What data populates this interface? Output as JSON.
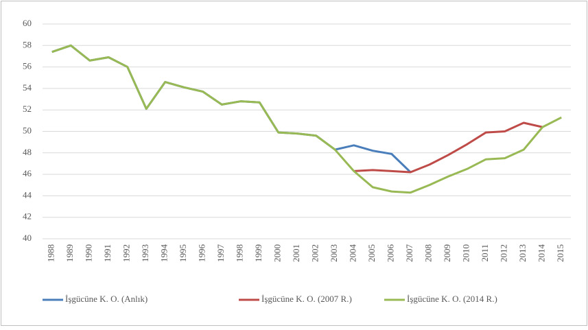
{
  "chart_data": {
    "type": "line",
    "categories": [
      "1988",
      "1989",
      "1990",
      "1991",
      "1992",
      "1993",
      "1994",
      "1995",
      "1996",
      "1997",
      "1998",
      "1999",
      "2000",
      "2001",
      "2002",
      "2003",
      "2004",
      "2005",
      "2006",
      "2007",
      "2008",
      "2009",
      "2010",
      "2011",
      "2012",
      "2013",
      "2014",
      "2015"
    ],
    "series": [
      {
        "name": "İşgücüne K. O. (Anlık)",
        "color": "#4a7ebb",
        "values": [
          57.4,
          58.0,
          56.6,
          56.9,
          56.0,
          52.1,
          54.6,
          54.1,
          53.7,
          52.5,
          52.8,
          52.7,
          49.9,
          49.8,
          49.6,
          48.3,
          48.7,
          48.2,
          47.9,
          46.2,
          null,
          null,
          null,
          null,
          null,
          null,
          null,
          null
        ]
      },
      {
        "name": "İşgücüne K. O. (2007 R.)",
        "color": "#be4b48",
        "values": [
          null,
          null,
          null,
          null,
          null,
          null,
          null,
          null,
          null,
          null,
          null,
          null,
          null,
          null,
          null,
          null,
          46.3,
          46.4,
          46.3,
          46.2,
          46.9,
          47.8,
          48.8,
          49.9,
          50.0,
          50.8,
          50.4,
          null
        ]
      },
      {
        "name": "İşgücüne K. O. (2014 R.)",
        "color": "#98b954",
        "values": [
          57.4,
          58.0,
          56.6,
          56.9,
          56.0,
          52.1,
          54.6,
          54.1,
          53.7,
          52.5,
          52.8,
          52.7,
          49.9,
          49.8,
          49.6,
          48.3,
          46.3,
          44.8,
          44.4,
          44.3,
          45.0,
          45.8,
          46.5,
          47.4,
          47.5,
          48.3,
          50.4,
          51.3
        ]
      }
    ],
    "ylim": [
      40,
      60
    ],
    "yticks": [
      40,
      42,
      44,
      46,
      48,
      50,
      52,
      54,
      56,
      58,
      60
    ],
    "grid": true
  }
}
